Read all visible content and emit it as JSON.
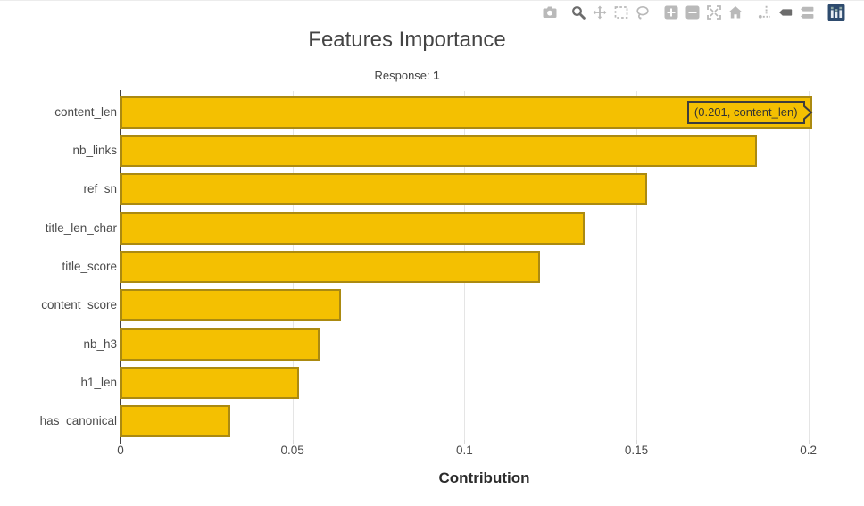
{
  "modebar": {
    "icons": [
      {
        "name": "camera-icon",
        "active": false
      },
      {
        "name": "zoom-icon",
        "active": true
      },
      {
        "name": "pan-icon",
        "active": false
      },
      {
        "name": "box-select-icon",
        "active": false
      },
      {
        "name": "lasso-select-icon",
        "active": false
      },
      {
        "name": "zoom-in-icon",
        "active": false
      },
      {
        "name": "zoom-out-icon",
        "active": false
      },
      {
        "name": "autoscale-icon",
        "active": false
      },
      {
        "name": "reset-axes-home-icon",
        "active": false
      },
      {
        "name": "toggle-spike-lines-icon",
        "active": false
      },
      {
        "name": "show-closest-on-hover-icon",
        "active": true
      },
      {
        "name": "compare-data-on-hover-icon",
        "active": false
      },
      {
        "name": "plotly-logo-icon",
        "active": false
      }
    ],
    "icon_color": "#b9b9b9",
    "icon_active_color": "#6c6c6c",
    "logo_color": "#2e4b6e"
  },
  "chart_data": {
    "type": "bar",
    "orientation": "horizontal",
    "title": "Features Importance",
    "annotation_prefix": "Response: ",
    "annotation_value": "1",
    "categories": [
      "content_len",
      "nb_links",
      "ref_sn",
      "title_len_char",
      "title_score",
      "content_score",
      "nb_h3",
      "h1_len",
      "has_canonical"
    ],
    "values": [
      0.201,
      0.185,
      0.153,
      0.135,
      0.122,
      0.064,
      0.058,
      0.052,
      0.032
    ],
    "xlabel": "Contribution",
    "x_ticks": [
      {
        "label": "0",
        "value": 0
      },
      {
        "label": "0.05",
        "value": 0.05
      },
      {
        "label": "0.1",
        "value": 0.1
      },
      {
        "label": "0.15",
        "value": 0.15
      },
      {
        "label": "0.2",
        "value": 0.2
      }
    ],
    "xlim": [
      0,
      0.2115
    ],
    "grid": true,
    "legend": "none",
    "bar_fill": "#f4c001",
    "bar_border": "rgba(70,65,40,0.42)",
    "hover_tooltip": {
      "text": "(0.201, content_len)",
      "category": "content_len",
      "value": 0.201
    }
  }
}
